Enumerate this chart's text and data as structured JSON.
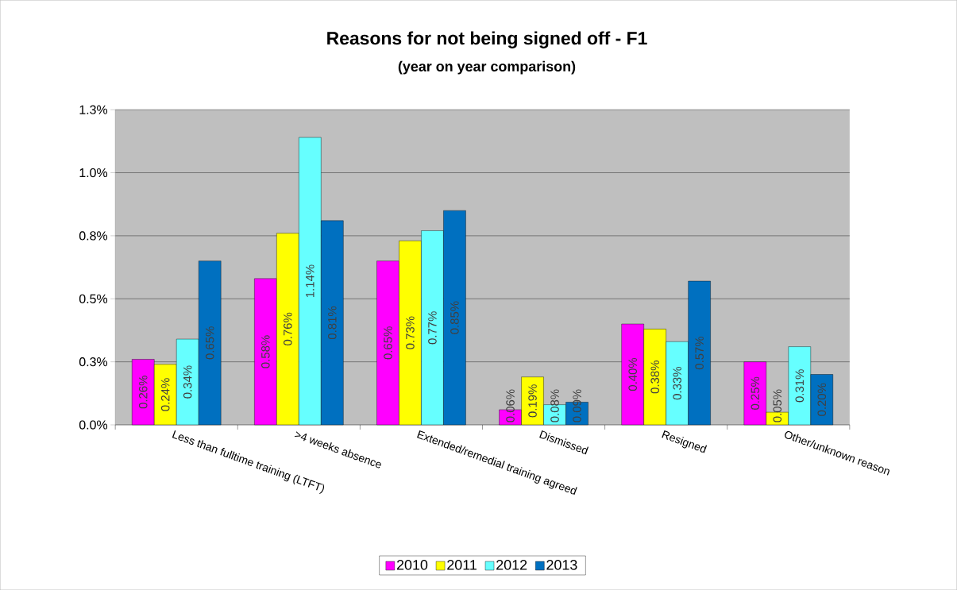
{
  "chart_data": {
    "type": "bar",
    "title": "Reasons for not being signed off - F1",
    "subtitle": "(year on year comparison)",
    "categories": [
      "Less than fulltime training (LTFT)",
      ">4 weeks absence",
      "Extended/remedial training agreed",
      "Dismissed",
      "Resigned",
      "Other/unknown reason"
    ],
    "series": [
      {
        "name": "2010",
        "color": "#ff00ff",
        "values": [
          0.26,
          0.58,
          0.65,
          0.06,
          0.4,
          0.25
        ],
        "value_labels": [
          "0.26%",
          "0.58%",
          "0.65%",
          "0.06%",
          "0.40%",
          "0.25%"
        ]
      },
      {
        "name": "2011",
        "color": "#ffff00",
        "values": [
          0.24,
          0.76,
          0.73,
          0.19,
          0.38,
          0.05
        ],
        "value_labels": [
          "0.24%",
          "0.76%",
          "0.73%",
          "0.19%",
          "0.38%",
          "0.05%"
        ]
      },
      {
        "name": "2012",
        "color": "#66ffff",
        "values": [
          0.34,
          1.14,
          0.77,
          0.08,
          0.33,
          0.31
        ],
        "value_labels": [
          "0.34%",
          "1.14%",
          "0.77%",
          "0.08%",
          "0.33%",
          "0.31%"
        ]
      },
      {
        "name": "2013",
        "color": "#0070c0",
        "values": [
          0.65,
          0.81,
          0.85,
          0.09,
          0.57,
          0.2
        ],
        "value_labels": [
          "0.65%",
          "0.81%",
          "0.85%",
          "0.09%",
          "0.57%",
          "0.20%"
        ]
      }
    ],
    "ylim": [
      0,
      1.25
    ],
    "yticks": [
      {
        "value": 0,
        "label": "0.0%"
      },
      {
        "value": 0.25,
        "label": "0.3%"
      },
      {
        "value": 0.5,
        "label": "0.5%"
      },
      {
        "value": 0.75,
        "label": "0.8%"
      },
      {
        "value": 1.0,
        "label": "1.0%"
      },
      {
        "value": 1.25,
        "label": "1.3%"
      }
    ],
    "grid": "y",
    "legend": "bottom"
  }
}
